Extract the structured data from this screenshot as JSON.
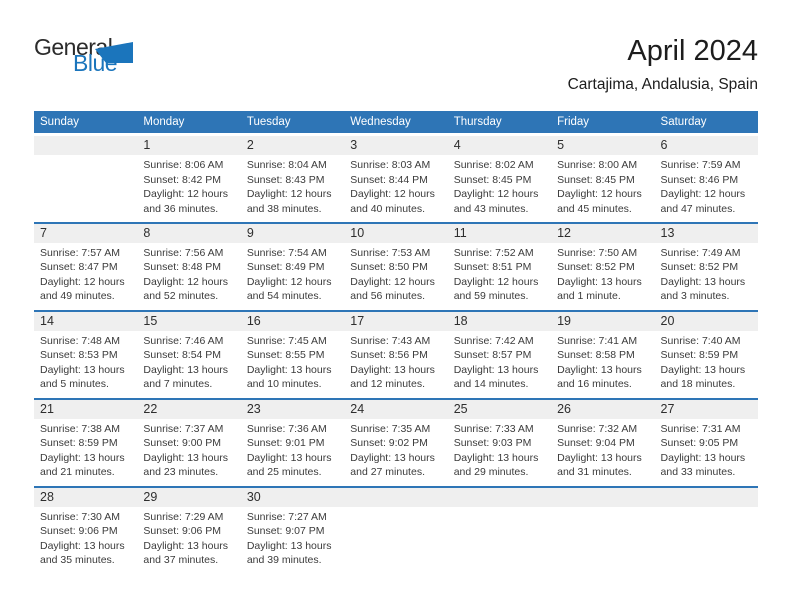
{
  "logo": {
    "general": "General",
    "blue": "Blue"
  },
  "header": {
    "title": "April 2024",
    "subtitle": "Cartajima, Andalusia, Spain"
  },
  "colors": {
    "accent_blue": "#2E75B6",
    "logo_blue": "#1B75BC",
    "strip_gray": "#EFEFEF"
  },
  "weekdays": [
    "Sunday",
    "Monday",
    "Tuesday",
    "Wednesday",
    "Thursday",
    "Friday",
    "Saturday"
  ],
  "weeks": [
    [
      null,
      {
        "day": "1",
        "sunrise": "Sunrise: 8:06 AM",
        "sunset": "Sunset: 8:42 PM",
        "daylight1": "Daylight: 12 hours",
        "daylight2": "and 36 minutes."
      },
      {
        "day": "2",
        "sunrise": "Sunrise: 8:04 AM",
        "sunset": "Sunset: 8:43 PM",
        "daylight1": "Daylight: 12 hours",
        "daylight2": "and 38 minutes."
      },
      {
        "day": "3",
        "sunrise": "Sunrise: 8:03 AM",
        "sunset": "Sunset: 8:44 PM",
        "daylight1": "Daylight: 12 hours",
        "daylight2": "and 40 minutes."
      },
      {
        "day": "4",
        "sunrise": "Sunrise: 8:02 AM",
        "sunset": "Sunset: 8:45 PM",
        "daylight1": "Daylight: 12 hours",
        "daylight2": "and 43 minutes."
      },
      {
        "day": "5",
        "sunrise": "Sunrise: 8:00 AM",
        "sunset": "Sunset: 8:45 PM",
        "daylight1": "Daylight: 12 hours",
        "daylight2": "and 45 minutes."
      },
      {
        "day": "6",
        "sunrise": "Sunrise: 7:59 AM",
        "sunset": "Sunset: 8:46 PM",
        "daylight1": "Daylight: 12 hours",
        "daylight2": "and 47 minutes."
      }
    ],
    [
      {
        "day": "7",
        "sunrise": "Sunrise: 7:57 AM",
        "sunset": "Sunset: 8:47 PM",
        "daylight1": "Daylight: 12 hours",
        "daylight2": "and 49 minutes."
      },
      {
        "day": "8",
        "sunrise": "Sunrise: 7:56 AM",
        "sunset": "Sunset: 8:48 PM",
        "daylight1": "Daylight: 12 hours",
        "daylight2": "and 52 minutes."
      },
      {
        "day": "9",
        "sunrise": "Sunrise: 7:54 AM",
        "sunset": "Sunset: 8:49 PM",
        "daylight1": "Daylight: 12 hours",
        "daylight2": "and 54 minutes."
      },
      {
        "day": "10",
        "sunrise": "Sunrise: 7:53 AM",
        "sunset": "Sunset: 8:50 PM",
        "daylight1": "Daylight: 12 hours",
        "daylight2": "and 56 minutes."
      },
      {
        "day": "11",
        "sunrise": "Sunrise: 7:52 AM",
        "sunset": "Sunset: 8:51 PM",
        "daylight1": "Daylight: 12 hours",
        "daylight2": "and 59 minutes."
      },
      {
        "day": "12",
        "sunrise": "Sunrise: 7:50 AM",
        "sunset": "Sunset: 8:52 PM",
        "daylight1": "Daylight: 13 hours",
        "daylight2": "and 1 minute."
      },
      {
        "day": "13",
        "sunrise": "Sunrise: 7:49 AM",
        "sunset": "Sunset: 8:52 PM",
        "daylight1": "Daylight: 13 hours",
        "daylight2": "and 3 minutes."
      }
    ],
    [
      {
        "day": "14",
        "sunrise": "Sunrise: 7:48 AM",
        "sunset": "Sunset: 8:53 PM",
        "daylight1": "Daylight: 13 hours",
        "daylight2": "and 5 minutes."
      },
      {
        "day": "15",
        "sunrise": "Sunrise: 7:46 AM",
        "sunset": "Sunset: 8:54 PM",
        "daylight1": "Daylight: 13 hours",
        "daylight2": "and 7 minutes."
      },
      {
        "day": "16",
        "sunrise": "Sunrise: 7:45 AM",
        "sunset": "Sunset: 8:55 PM",
        "daylight1": "Daylight: 13 hours",
        "daylight2": "and 10 minutes."
      },
      {
        "day": "17",
        "sunrise": "Sunrise: 7:43 AM",
        "sunset": "Sunset: 8:56 PM",
        "daylight1": "Daylight: 13 hours",
        "daylight2": "and 12 minutes."
      },
      {
        "day": "18",
        "sunrise": "Sunrise: 7:42 AM",
        "sunset": "Sunset: 8:57 PM",
        "daylight1": "Daylight: 13 hours",
        "daylight2": "and 14 minutes."
      },
      {
        "day": "19",
        "sunrise": "Sunrise: 7:41 AM",
        "sunset": "Sunset: 8:58 PM",
        "daylight1": "Daylight: 13 hours",
        "daylight2": "and 16 minutes."
      },
      {
        "day": "20",
        "sunrise": "Sunrise: 7:40 AM",
        "sunset": "Sunset: 8:59 PM",
        "daylight1": "Daylight: 13 hours",
        "daylight2": "and 18 minutes."
      }
    ],
    [
      {
        "day": "21",
        "sunrise": "Sunrise: 7:38 AM",
        "sunset": "Sunset: 8:59 PM",
        "daylight1": "Daylight: 13 hours",
        "daylight2": "and 21 minutes."
      },
      {
        "day": "22",
        "sunrise": "Sunrise: 7:37 AM",
        "sunset": "Sunset: 9:00 PM",
        "daylight1": "Daylight: 13 hours",
        "daylight2": "and 23 minutes."
      },
      {
        "day": "23",
        "sunrise": "Sunrise: 7:36 AM",
        "sunset": "Sunset: 9:01 PM",
        "daylight1": "Daylight: 13 hours",
        "daylight2": "and 25 minutes."
      },
      {
        "day": "24",
        "sunrise": "Sunrise: 7:35 AM",
        "sunset": "Sunset: 9:02 PM",
        "daylight1": "Daylight: 13 hours",
        "daylight2": "and 27 minutes."
      },
      {
        "day": "25",
        "sunrise": "Sunrise: 7:33 AM",
        "sunset": "Sunset: 9:03 PM",
        "daylight1": "Daylight: 13 hours",
        "daylight2": "and 29 minutes."
      },
      {
        "day": "26",
        "sunrise": "Sunrise: 7:32 AM",
        "sunset": "Sunset: 9:04 PM",
        "daylight1": "Daylight: 13 hours",
        "daylight2": "and 31 minutes."
      },
      {
        "day": "27",
        "sunrise": "Sunrise: 7:31 AM",
        "sunset": "Sunset: 9:05 PM",
        "daylight1": "Daylight: 13 hours",
        "daylight2": "and 33 minutes."
      }
    ],
    [
      {
        "day": "28",
        "sunrise": "Sunrise: 7:30 AM",
        "sunset": "Sunset: 9:06 PM",
        "daylight1": "Daylight: 13 hours",
        "daylight2": "and 35 minutes."
      },
      {
        "day": "29",
        "sunrise": "Sunrise: 7:29 AM",
        "sunset": "Sunset: 9:06 PM",
        "daylight1": "Daylight: 13 hours",
        "daylight2": "and 37 minutes."
      },
      {
        "day": "30",
        "sunrise": "Sunrise: 7:27 AM",
        "sunset": "Sunset: 9:07 PM",
        "daylight1": "Daylight: 13 hours",
        "daylight2": "and 39 minutes."
      },
      null,
      null,
      null,
      null
    ]
  ]
}
